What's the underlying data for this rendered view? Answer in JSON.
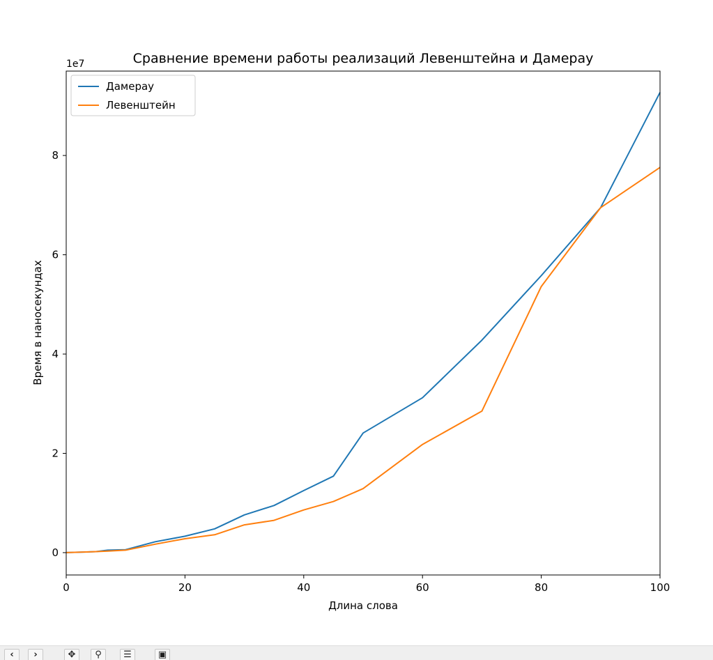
{
  "chart_data": {
    "type": "line",
    "title": "Сравнение времени работы реализаций Левенштейна и Дамерау",
    "xlabel": "Длина слова",
    "ylabel": "Время в наносекундах",
    "y_offset_label": "1e7",
    "xlim": [
      0,
      100
    ],
    "ylim": [
      -0.45,
      9.7
    ],
    "x_ticks": [
      0,
      20,
      40,
      60,
      80,
      100
    ],
    "x_tick_labels": [
      "0",
      "20",
      "40",
      "60",
      "80",
      "100"
    ],
    "y_ticks": [
      0,
      2,
      4,
      6,
      8
    ],
    "y_tick_labels": [
      "0",
      "2",
      "4",
      "6",
      "8"
    ],
    "grid": false,
    "legend_position": "upper-left",
    "x": [
      0,
      5,
      7,
      10,
      15,
      20,
      25,
      30,
      35,
      40,
      45,
      50,
      60,
      70,
      80,
      90,
      100
    ],
    "series": [
      {
        "name": "Дамерау",
        "color": "#1f77b4",
        "values": [
          0,
          0.02,
          0.05,
          0.06,
          0.22,
          0.33,
          0.48,
          0.76,
          0.95,
          1.25,
          1.54,
          2.41,
          3.12,
          4.28,
          5.58,
          6.95,
          9.27
        ]
      },
      {
        "name": "Левенштейн",
        "color": "#ff7f0e",
        "values": [
          0,
          0.02,
          0.03,
          0.05,
          0.17,
          0.28,
          0.36,
          0.56,
          0.65,
          0.86,
          1.03,
          1.29,
          2.18,
          2.85,
          5.36,
          6.95,
          7.76
        ]
      }
    ]
  },
  "toolbar": {
    "icons": [
      "back-arrow-icon",
      "forward-arrow-icon",
      "pan-icon",
      "zoom-icon",
      "configure-subplots-icon",
      "save-icon"
    ]
  }
}
